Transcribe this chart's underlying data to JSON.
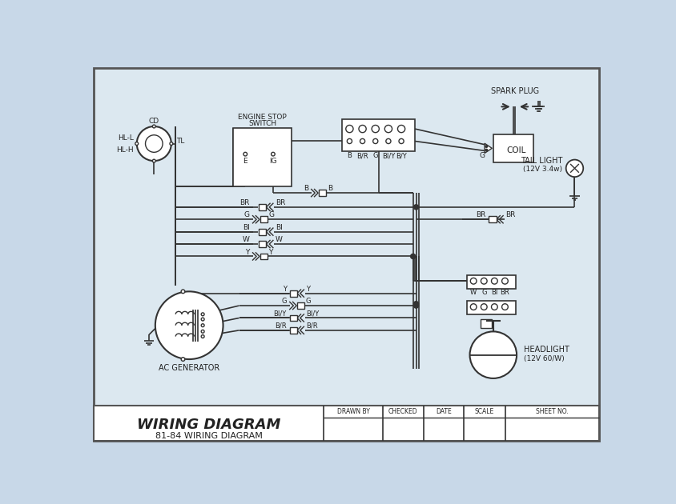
{
  "title": "WIRING DIAGRAM",
  "subtitle": "81-84 WIRING DIAGRAM",
  "bg_color": "#c8d8e8",
  "diagram_bg": "#dce8f0",
  "border_color": "#555555",
  "line_color": "#333333",
  "text_color": "#222222",
  "footer_headers": [
    "DRAWN BY",
    "CHECKED",
    "DATE",
    "SCALE",
    "SHEET NO."
  ],
  "footer_divs": [
    0.455,
    0.572,
    0.652,
    0.732,
    0.814
  ],
  "connector_labels_top": [
    "B",
    "B/R",
    "G",
    "BI/Y",
    "B/Y"
  ],
  "wire_labels_mid": [
    "BR",
    "G",
    "BI",
    "W",
    "Y"
  ],
  "gen_labels": [
    "Y",
    "G",
    "BI/Y",
    "B/R"
  ],
  "headlight_conn_labels": [
    "W",
    "G",
    "BI",
    "BR"
  ]
}
